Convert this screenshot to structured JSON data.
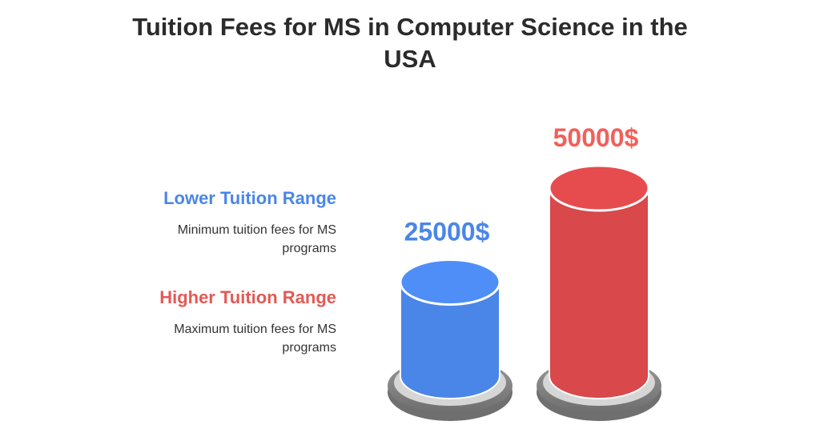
{
  "title_lines": [
    "Tuition Fees for MS in Computer Science in the",
    "USA"
  ],
  "legend": [
    {
      "heading": "Lower Tuition Range",
      "description_lines": [
        "Minimum tuition fees for MS",
        "programs"
      ],
      "color": "#4a86e8"
    },
    {
      "heading": "Higher Tuition Range",
      "description_lines": [
        "Maximum tuition fees for MS",
        "programs"
      ],
      "color": "#e25a55"
    }
  ],
  "chart_data": {
    "type": "bar",
    "categories": [
      "Lower Tuition Range",
      "Higher Tuition Range"
    ],
    "values": [
      25000,
      50000
    ],
    "value_labels": [
      "25000$",
      "50000$"
    ],
    "colors": [
      "#4a86e8",
      "#d9484a"
    ],
    "label_colors": [
      "#4a86e8",
      "#f0615b"
    ]
  }
}
